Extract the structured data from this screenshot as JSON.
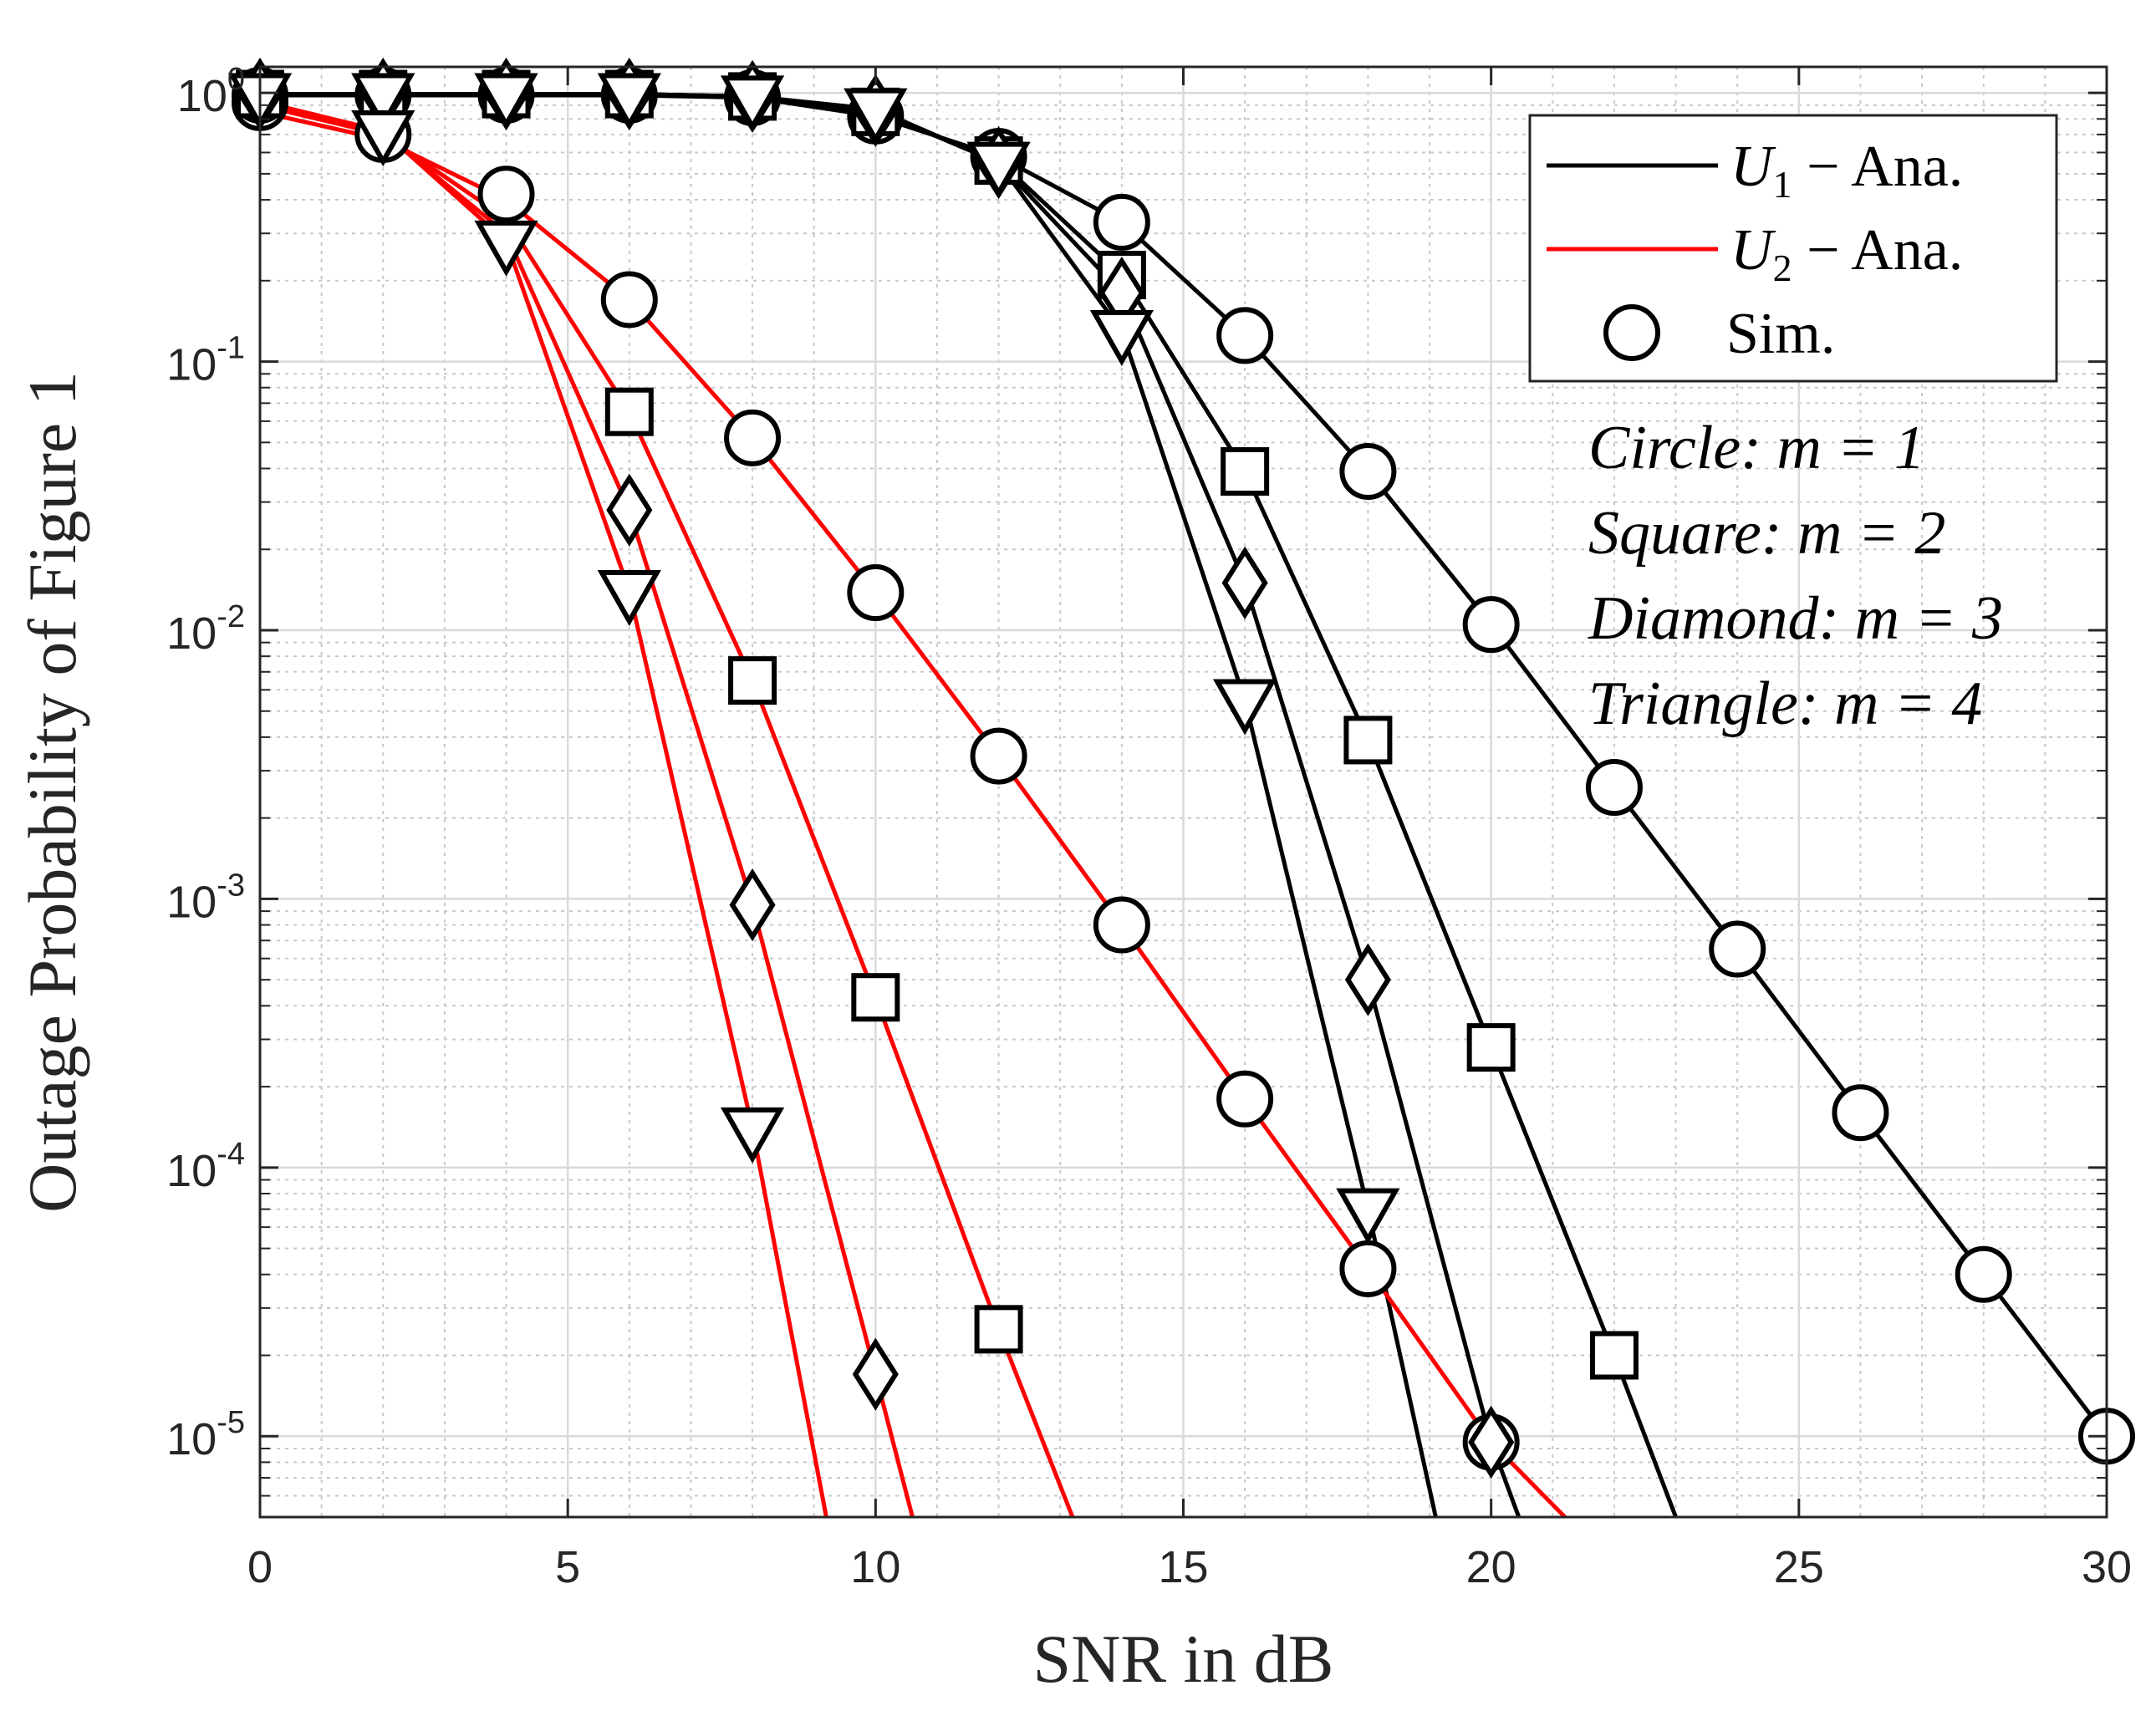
{
  "chart_data": {
    "type": "line",
    "xlabel": "SNR in dB",
    "ylabel": "Outage Probability of Figure 1",
    "xlim": [
      0,
      30
    ],
    "ylim": [
      5e-06,
      1.25
    ],
    "yscale": "log",
    "grid": true,
    "minor_grid": true,
    "x_ticks": [
      0,
      5,
      10,
      15,
      20,
      25,
      30
    ],
    "x_tick_labels": [
      "0",
      "5",
      "10",
      "15",
      "20",
      "25",
      "30"
    ],
    "y_ticks": [
      {
        "value": 1,
        "base": "10",
        "exp": "0"
      },
      {
        "value": 0.1,
        "base": "10",
        "exp": "-1"
      },
      {
        "value": 0.01,
        "base": "10",
        "exp": "-2"
      },
      {
        "value": 0.001,
        "base": "10",
        "exp": "-3"
      },
      {
        "value": 0.0001,
        "base": "10",
        "exp": "-4"
      },
      {
        "value": 1e-05,
        "base": "10",
        "exp": "-5"
      }
    ],
    "legend": {
      "location": "top-right",
      "entries": [
        {
          "label": "U1 − Ana.",
          "sym": "U",
          "sub": "1",
          "rest": " − Ana.",
          "kind": "line",
          "color": "#000000"
        },
        {
          "label": "U2 − Ana.",
          "sym": "U",
          "sub": "2",
          "rest": " − Ana.",
          "kind": "line",
          "color": "#ff0000"
        },
        {
          "label": "Sim.",
          "sym": "",
          "sub": "",
          "rest": "Sim.",
          "kind": "marker",
          "color": "#000000"
        }
      ]
    },
    "annotations": [
      "Circle: m = 1",
      "Square: m = 2",
      "Diamond: m = 3",
      "Triangle: m = 4"
    ],
    "series": [
      {
        "name": "U1 m=1",
        "user": "U1",
        "m": 1,
        "color": "#000000",
        "marker": "circle",
        "x": [
          0,
          2,
          4,
          6,
          8,
          10,
          12,
          14,
          16,
          18,
          20,
          22,
          24,
          26,
          28,
          30
        ],
        "values": [
          0.98,
          0.98,
          0.98,
          0.98,
          0.96,
          0.82,
          0.58,
          0.33,
          0.125,
          0.039,
          0.0105,
          0.0026,
          0.00065,
          0.00016,
          4e-05,
          1e-05
        ]
      },
      {
        "name": "U1 m=2",
        "user": "U1",
        "m": 2,
        "color": "#000000",
        "marker": "square",
        "x": [
          0,
          2,
          4,
          6,
          8,
          10,
          12,
          14,
          16,
          18,
          20,
          22,
          23
        ],
        "values": [
          0.99,
          0.99,
          0.99,
          0.99,
          0.97,
          0.85,
          0.56,
          0.21,
          0.039,
          0.0039,
          0.00028,
          2e-05,
          5e-06
        ]
      },
      {
        "name": "U1 m=3",
        "user": "U1",
        "m": 3,
        "color": "#000000",
        "marker": "diamond",
        "x": [
          0,
          2,
          4,
          6,
          8,
          10,
          12,
          14,
          16,
          18,
          20,
          20.45
        ],
        "values": [
          0.99,
          0.99,
          0.99,
          0.99,
          0.97,
          0.86,
          0.55,
          0.18,
          0.015,
          0.0005,
          9.5e-06,
          5e-06
        ]
      },
      {
        "name": "U1 m=4",
        "user": "U1",
        "m": 4,
        "color": "#000000",
        "marker": "triangle",
        "x": [
          0,
          2,
          4,
          6,
          8,
          10,
          12,
          14,
          16,
          18,
          19.1
        ],
        "values": [
          0.99,
          0.99,
          0.99,
          0.99,
          0.97,
          0.87,
          0.55,
          0.13,
          0.0055,
          7e-05,
          5e-06
        ]
      },
      {
        "name": "U2 m=1",
        "user": "U2",
        "m": 1,
        "color": "#ff0000",
        "marker": "circle",
        "x": [
          0,
          2,
          4,
          6,
          8,
          10,
          12,
          14,
          16,
          18,
          20,
          21.2
        ],
        "values": [
          0.85,
          0.67,
          0.4,
          0.17,
          0.052,
          0.0138,
          0.0034,
          0.0008,
          0.00018,
          4.2e-05,
          9.5e-06,
          5e-06
        ]
      },
      {
        "name": "U2 m=2",
        "user": "U2",
        "m": 2,
        "color": "#ff0000",
        "marker": "square",
        "x": [
          0,
          2,
          4,
          6,
          8,
          10,
          12,
          13.2
        ],
        "values": [
          0.9,
          0.7,
          0.34,
          0.065,
          0.0065,
          0.00043,
          2.5e-05,
          5e-06
        ]
      },
      {
        "name": "U2 m=3",
        "user": "U2",
        "m": 3,
        "color": "#ff0000",
        "marker": "diamond",
        "x": [
          0,
          2,
          4,
          6,
          8,
          10,
          10.6
        ],
        "values": [
          0.92,
          0.71,
          0.3,
          0.028,
          0.00095,
          1.7e-05,
          5e-06
        ]
      },
      {
        "name": "U2 m=4",
        "user": "U2",
        "m": 4,
        "color": "#ff0000",
        "marker": "triangle",
        "x": [
          0,
          2,
          4,
          6,
          8,
          9.2
        ],
        "values": [
          0.93,
          0.72,
          0.28,
          0.014,
          0.00014,
          5e-06
        ]
      }
    ],
    "markers": [
      {
        "shape": "circle",
        "x": [
          0,
          2,
          4,
          6,
          8,
          10,
          12,
          14,
          16,
          18,
          20,
          22,
          24,
          26,
          28,
          30
        ],
        "values": [
          0.92,
          0.7,
          0.42,
          0.17,
          0.052,
          0.0138,
          0.0034,
          0.0008,
          0.00018,
          4.2e-05,
          9.5e-06,
          0.0026,
          0.00065,
          0.00016,
          4e-05,
          1e-05
        ]
      },
      {
        "shape": "circle",
        "x": [
          0,
          2,
          4,
          6,
          8,
          10,
          12,
          14,
          16,
          18,
          20
        ],
        "values": [
          0.98,
          0.98,
          0.98,
          0.98,
          0.96,
          0.82,
          0.58,
          0.33,
          0.125,
          0.039,
          0.0105
        ]
      },
      {
        "shape": "square",
        "x": [
          0,
          2,
          4,
          6,
          8,
          10,
          12,
          14,
          16,
          18,
          20,
          22
        ],
        "values": [
          0.99,
          0.99,
          0.99,
          0.99,
          0.97,
          0.85,
          0.56,
          0.21,
          0.039,
          0.0039,
          0.00028,
          2e-05
        ]
      },
      {
        "shape": "square",
        "x": [
          6,
          8,
          10,
          12
        ],
        "values": [
          0.065,
          0.0065,
          0.00043,
          2.5e-05
        ]
      },
      {
        "shape": "diamond",
        "x": [
          0,
          2,
          4,
          6,
          8,
          10,
          12,
          14,
          16,
          18,
          20
        ],
        "values": [
          0.99,
          0.99,
          0.99,
          0.99,
          0.97,
          0.86,
          0.55,
          0.18,
          0.015,
          0.0005,
          9.5e-06
        ]
      },
      {
        "shape": "diamond",
        "x": [
          6,
          8,
          10
        ],
        "values": [
          0.028,
          0.00095,
          1.7e-05
        ]
      },
      {
        "shape": "triangle",
        "x": [
          0,
          2,
          4,
          6,
          8,
          10,
          12,
          14,
          16,
          18
        ],
        "values": [
          0.99,
          0.99,
          0.99,
          0.99,
          0.97,
          0.87,
          0.55,
          0.13,
          0.0055,
          7e-05
        ]
      },
      {
        "shape": "triangle",
        "x": [
          2,
          4,
          6,
          8
        ],
        "values": [
          0.72,
          0.28,
          0.014,
          0.00014
        ]
      }
    ]
  }
}
